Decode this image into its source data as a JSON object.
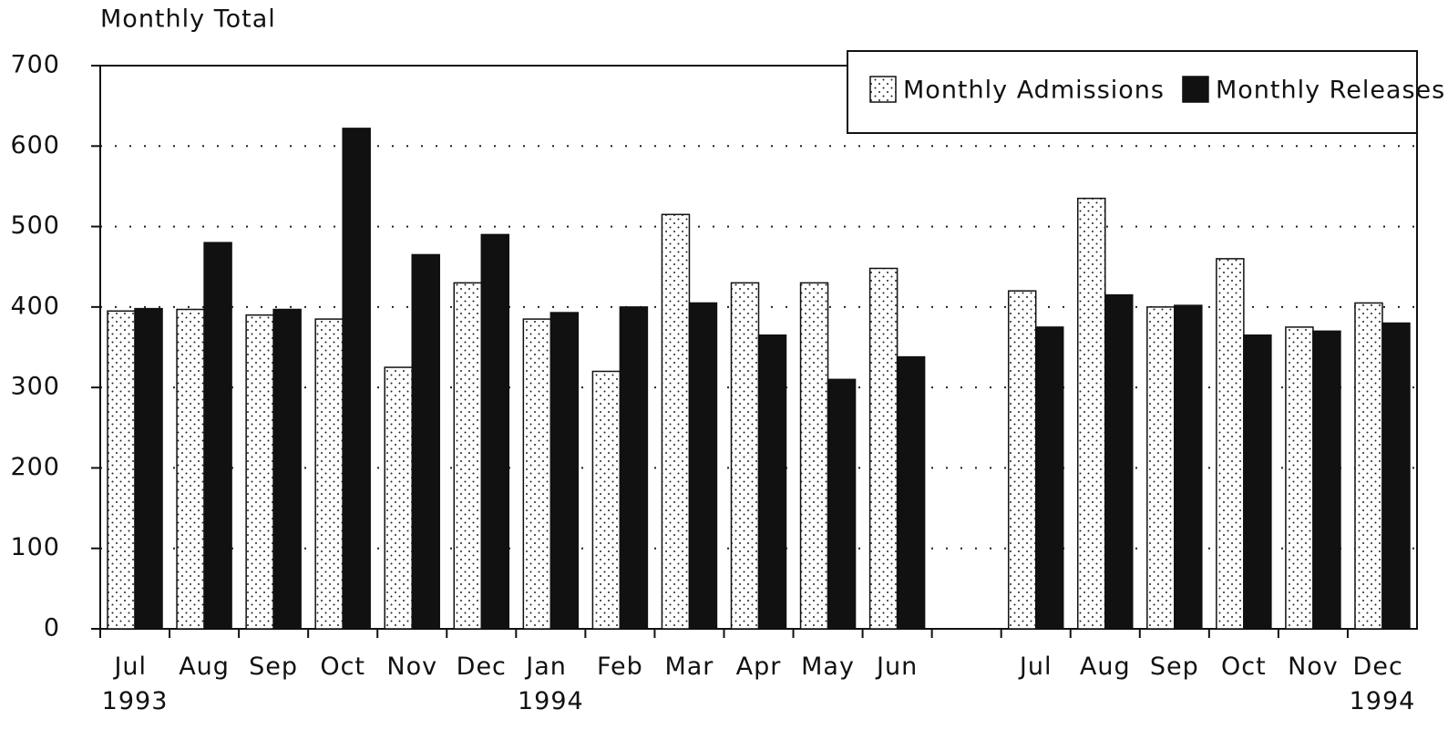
{
  "chart_data": {
    "type": "bar",
    "y_label": "Monthly Total",
    "categories": [
      "Jul 1993",
      "Aug",
      "Sep",
      "Oct",
      "Nov",
      "Dec",
      "Jan 1994",
      "Feb",
      "Mar",
      "Apr",
      "May",
      "Jun",
      null,
      "Jul",
      "Aug",
      "Sep",
      "Oct",
      "Nov",
      "Dec 1994"
    ],
    "series": [
      {
        "name": "Monthly Admissions",
        "color": "#ffffff",
        "pattern": "dotted",
        "values": [
          395,
          397,
          390,
          385,
          325,
          430,
          385,
          320,
          515,
          430,
          430,
          448,
          null,
          420,
          535,
          400,
          460,
          375,
          405
        ]
      },
      {
        "name": "Monthly Releases",
        "color": "#111111",
        "values": [
          398,
          480,
          397,
          622,
          465,
          490,
          393,
          400,
          405,
          365,
          310,
          338,
          null,
          375,
          415,
          402,
          365,
          370,
          380
        ]
      }
    ],
    "ylim": [
      0,
      700
    ],
    "yticks": [
      0,
      100,
      200,
      300,
      400,
      500,
      600,
      700
    ],
    "grid": true,
    "legend": "upper right"
  }
}
